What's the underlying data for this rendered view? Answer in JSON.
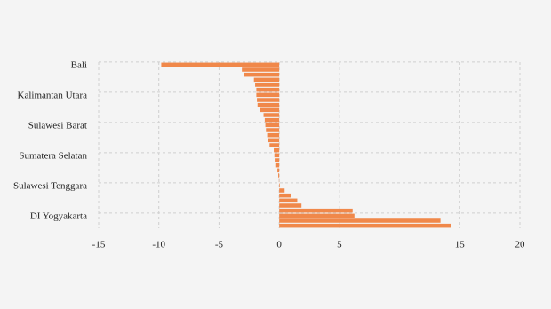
{
  "chart_data": {
    "type": "bar",
    "orientation": "horizontal",
    "categories": [
      "Bali",
      null,
      null,
      null,
      null,
      null,
      "Kalimantan Utara",
      null,
      null,
      null,
      null,
      null,
      "Sulawesi Barat",
      null,
      null,
      null,
      null,
      null,
      "Sumatera Selatan",
      null,
      null,
      null,
      null,
      null,
      "Sulawesi Tenggara",
      null,
      null,
      null,
      null,
      null,
      "DI Yogyakarta",
      null,
      null
    ],
    "values": [
      -9.8,
      -3.1,
      -2.95,
      -2.1,
      -2.0,
      -1.9,
      -1.9,
      -1.85,
      -1.8,
      -1.6,
      -1.3,
      -1.2,
      -1.15,
      -1.1,
      -1.0,
      -0.9,
      -0.8,
      -0.45,
      -0.4,
      -0.3,
      -0.25,
      -0.15,
      -0.08,
      -0.02,
      0.05,
      0.45,
      0.95,
      1.5,
      1.85,
      6.1,
      6.25,
      13.4,
      14.25
    ],
    "color": "#f0884a",
    "xlim": [
      -15,
      20
    ],
    "xticks": [
      -15,
      -10,
      -5,
      0,
      5,
      15,
      20
    ],
    "grid": true
  }
}
